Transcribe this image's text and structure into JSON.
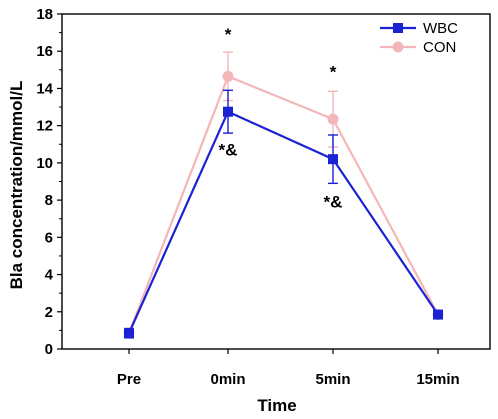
{
  "chart_data": {
    "type": "line",
    "xlabel": "Time",
    "ylabel": "Bla concentration/mmol/L",
    "categories": [
      "Pre",
      "0min",
      "5min",
      "15min"
    ],
    "ylim": [
      0,
      18
    ],
    "yticks": [
      0,
      2,
      4,
      6,
      8,
      10,
      12,
      14,
      16,
      18
    ],
    "grid": false,
    "legend_position": "top-right",
    "series": [
      {
        "name": "CON",
        "color": "#f4b6b8",
        "marker": "circle",
        "values": [
          0.85,
          14.65,
          12.35,
          1.85
        ],
        "errors": [
          0.25,
          1.3,
          1.5,
          0.2
        ]
      },
      {
        "name": "WBC",
        "color": "#1a22d4",
        "marker": "square",
        "values": [
          0.85,
          12.75,
          10.2,
          1.85
        ],
        "errors": [
          0.25,
          1.15,
          1.3,
          0.2
        ]
      }
    ],
    "annotations": [
      {
        "text": "*",
        "category": "0min",
        "y": 16.6
      },
      {
        "text": "*&",
        "category": "0min",
        "y": 10.4
      },
      {
        "text": "*",
        "category": "5min",
        "y": 14.6
      },
      {
        "text": "*&",
        "category": "5min",
        "y": 7.6
      }
    ]
  }
}
